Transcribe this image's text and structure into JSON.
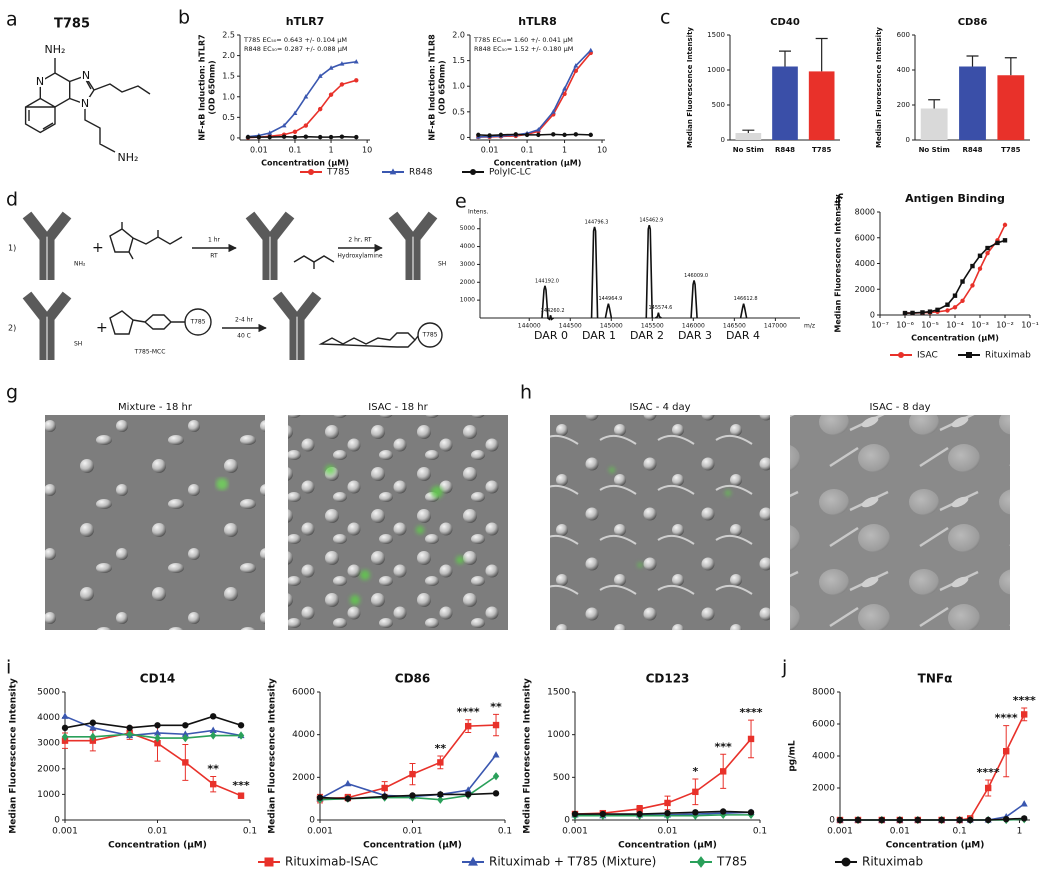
{
  "panel_labels": [
    "a",
    "b",
    "c",
    "d",
    "e",
    "f",
    "g",
    "h",
    "i",
    "j"
  ],
  "structure": {
    "title": "T785",
    "labels": [
      "NH₂",
      "N",
      "N",
      "N",
      "NH₂"
    ]
  },
  "scheme": {
    "steps": [
      "1)",
      "2)"
    ],
    "operators": [
      "+",
      "+"
    ],
    "groups": [
      "NH₂",
      "SH",
      "SH"
    ],
    "conditions": [
      "1 hr",
      "RT",
      "2 hr, RT",
      "Hydroxylamine",
      "2-4 hr",
      "40 C"
    ],
    "reagent": "T785-MCC",
    "payload": [
      "T785",
      "T785"
    ]
  },
  "images": [
    {
      "title": "Mixture - 18 hr"
    },
    {
      "title": "ISAC - 18 hr"
    },
    {
      "title": "ISAC - 4 day"
    },
    {
      "title": "ISAC - 8 day"
    }
  ],
  "chart_data": [
    {
      "type": "line",
      "title": "hTLR7",
      "xscale": "log",
      "legend": "bottom",
      "xlabel": "Concentration (μM)",
      "ylabel": [
        "NF-κB Induction: hTLR7",
        "(OD 650nm)"
      ],
      "annotations": [
        "T785 EC₅₀= 0.643 +/- 0.104 μM",
        "R848 EC₅₀= 0.287 +/- 0.088 μM"
      ],
      "x": [
        0.005,
        0.01,
        0.02,
        0.05,
        0.1,
        0.2,
        0.5,
        1,
        2,
        5
      ],
      "xlim": [
        0.003,
        12
      ],
      "xticks": [
        0.01,
        0.1,
        1,
        10
      ],
      "ylim": [
        -0.05,
        2.5
      ],
      "yticks": [
        0,
        0.5,
        {
          "value": 1,
          "label": "1.0"
        },
        1.5,
        {
          "value": 2,
          "label": "2.0"
        },
        2.5
      ],
      "series": [
        {
          "name": "T785",
          "color": "#e8312a",
          "marker": "circle",
          "values": [
            0.01,
            0.02,
            0.04,
            0.08,
            0.15,
            0.3,
            0.7,
            1.05,
            1.3,
            1.4
          ]
        },
        {
          "name": "R848",
          "color": "#3a57b0",
          "marker": "triangle",
          "values": [
            0.03,
            0.06,
            0.12,
            0.3,
            0.6,
            1.0,
            1.5,
            1.7,
            1.8,
            1.85
          ]
        },
        {
          "name": "PolyIC-LC",
          "color": "#111111",
          "marker": "circle",
          "values": [
            0.02,
            0.02,
            0.02,
            0.03,
            0.02,
            0.03,
            0.02,
            0.02,
            0.03,
            0.02
          ]
        }
      ]
    },
    {
      "type": "line",
      "title": "hTLR8",
      "xscale": "log",
      "xlabel": "Concentration (μM)",
      "ylabel": [
        "NF-κB Induction: hTLR8",
        "(OD 650nm)"
      ],
      "annotations": [
        "T785 EC₅₀= 1.60 +/- 0.041 μM",
        "R848 EC₅₀= 1.52 +/- 0.180 μM"
      ],
      "x": [
        0.005,
        0.01,
        0.02,
        0.05,
        0.1,
        0.2,
        0.5,
        1,
        2,
        5
      ],
      "xlim": [
        0.003,
        12
      ],
      "xticks": [
        0.01,
        0.1,
        1,
        10
      ],
      "ylim": [
        -0.05,
        2.0
      ],
      "yticks": [
        0,
        0.5,
        {
          "value": 1,
          "label": "1.0"
        },
        1.5,
        {
          "value": 2,
          "label": "2.0"
        }
      ],
      "series": [
        {
          "color": "#e8312a",
          "marker": "circle",
          "values": [
            0.01,
            0.01,
            0.02,
            0.03,
            0.06,
            0.12,
            0.45,
            0.85,
            1.3,
            1.65
          ]
        },
        {
          "color": "#3a57b0",
          "marker": "triangle",
          "values": [
            0.01,
            0.02,
            0.03,
            0.05,
            0.08,
            0.15,
            0.5,
            0.95,
            1.4,
            1.7
          ]
        },
        {
          "color": "#111111",
          "marker": "circle",
          "values": [
            0.05,
            0.04,
            0.05,
            0.06,
            0.05,
            0.05,
            0.06,
            0.05,
            0.06,
            0.05
          ]
        }
      ]
    },
    {
      "type": "bar",
      "title": "CD40",
      "ylabel": "Median Fluorescence Intensity",
      "categories": [
        "No Stim",
        "R848",
        "T785"
      ],
      "values": [
        100,
        1050,
        980
      ],
      "errors": [
        40,
        220,
        470
      ],
      "colors": [
        "#d9d9d9",
        "#3a4fa8",
        "#e8312a"
      ],
      "ylim": [
        0,
        1500
      ],
      "yticks": [
        0,
        500,
        1000,
        1500
      ]
    },
    {
      "type": "bar",
      "title": "CD86",
      "ylabel": "Median Fluorescence Intensity",
      "categories": [
        "No Stim",
        "R848",
        "T785"
      ],
      "values": [
        180,
        420,
        370
      ],
      "errors": [
        50,
        60,
        100
      ],
      "colors": [
        "#d9d9d9",
        "#3a4fa8",
        "#e8312a"
      ],
      "ylim": [
        0,
        600
      ],
      "yticks": [
        0,
        200,
        400,
        600
      ]
    },
    {
      "type": "spectrum",
      "ylabel": "Intens.",
      "xlabel": "m/z",
      "color": "#111111",
      "x": [
        144192.0,
        144260.2,
        144796.3,
        144964.9,
        145462.9,
        145574.6,
        146009.0,
        146612.8
      ],
      "x_labels": [
        "144192.0",
        "144260.2",
        "144796.3",
        "144964.9",
        "145462.9",
        "145574.6",
        "146009.0",
        "146612.8"
      ],
      "values": [
        1800,
        150,
        5100,
        800,
        5200,
        300,
        2100,
        800
      ],
      "dar_labels": [
        "DAR 0",
        "DAR 1",
        "DAR 2",
        "DAR 3",
        "DAR 4"
      ],
      "xlim": [
        143400,
        147300
      ],
      "xticks": [
        144000,
        144500,
        145000,
        145500,
        146000,
        146500,
        147000
      ],
      "ylim": [
        0,
        5600
      ],
      "yticks": [
        1000,
        2000,
        3000,
        4000,
        5000
      ]
    },
    {
      "type": "line",
      "title": "Antigen Binding",
      "xscale": "log",
      "legend": "bottom",
      "xlabel": "Concentration (μM)",
      "ylabel": [
        "Median Fluorescence Intensity"
      ],
      "x": [
        1e-06,
        2e-06,
        5e-06,
        1e-05,
        2e-05,
        5e-05,
        0.0001,
        0.0002,
        0.0005,
        0.001,
        0.002,
        0.005,
        0.01
      ],
      "xlim": [
        1e-07,
        0.1
      ],
      "xticks": [
        {
          "value": 1e-07,
          "label": "10⁻⁷"
        },
        {
          "value": 1e-06,
          "label": "10⁻⁶"
        },
        {
          "value": 1e-05,
          "label": "10⁻⁵"
        },
        {
          "value": 0.0001,
          "label": "10⁻⁴"
        },
        {
          "value": 0.001,
          "label": "10⁻³"
        },
        {
          "value": 0.01,
          "label": "10⁻²"
        },
        {
          "value": 0.1,
          "label": "10⁻¹"
        }
      ],
      "ylim": [
        0,
        8000
      ],
      "yticks": [
        0,
        2000,
        4000,
        6000,
        8000
      ],
      "series": [
        {
          "name": "ISAC",
          "color": "#e8312a",
          "marker": "circle",
          "values": [
            150,
            150,
            180,
            200,
            250,
            350,
            600,
            1100,
            2300,
            3600,
            4800,
            5800,
            7000
          ]
        },
        {
          "name": "Rituximab",
          "color": "#111111",
          "marker": "square",
          "values": [
            150,
            160,
            200,
            260,
            400,
            800,
            1500,
            2600,
            3800,
            4600,
            5200,
            5600,
            5800
          ]
        }
      ]
    },
    {
      "type": "line",
      "title": "CD14",
      "xscale": "log",
      "legend": "bottom",
      "xlabel": "Concentration (μM)",
      "ylabel": [
        "Median Fluorescence Intensity"
      ],
      "x": [
        0.001,
        0.002,
        0.005,
        0.01,
        0.02,
        0.04,
        0.08
      ],
      "xlim": [
        0.001,
        0.1
      ],
      "xticks": [
        0.001,
        0.01,
        0.1
      ],
      "ylim": [
        0,
        5000
      ],
      "yticks": [
        0,
        1000,
        2000,
        3000,
        4000,
        5000
      ],
      "series": [
        {
          "name": "Rituximab-ISAC",
          "color": "#e8312a",
          "marker": "square",
          "values": [
            3100,
            3100,
            3400,
            3000,
            2250,
            1400,
            950
          ],
          "errors": [
            300,
            400,
            250,
            700,
            700,
            300,
            100
          ],
          "stars": [
            null,
            null,
            null,
            null,
            null,
            "**",
            "***"
          ]
        },
        {
          "name": "Rituximab + T785 (Mixture)",
          "color": "#3a57b0",
          "marker": "triangle",
          "values": [
            4050,
            3600,
            3300,
            3400,
            3350,
            3500,
            3300
          ]
        },
        {
          "name": "T785",
          "color": "#2aa05a",
          "marker": "diamond",
          "values": [
            3250,
            3250,
            3350,
            3200,
            3200,
            3300,
            3300
          ]
        },
        {
          "name": "Rituximab",
          "color": "#111111",
          "marker": "circle",
          "values": [
            3600,
            3800,
            3600,
            3700,
            3700,
            4050,
            3700
          ]
        }
      ]
    },
    {
      "type": "line",
      "title": "CD86",
      "xscale": "log",
      "xlabel": "Concentration (μM)",
      "ylabel": [
        "Median Fluorescence Intensity"
      ],
      "x": [
        0.001,
        0.002,
        0.005,
        0.01,
        0.02,
        0.04,
        0.08
      ],
      "xlim": [
        0.001,
        0.1
      ],
      "xticks": [
        0.001,
        0.01,
        0.1
      ],
      "ylim": [
        0,
        6000
      ],
      "yticks": [
        0,
        2000,
        4000,
        6000
      ],
      "series": [
        {
          "color": "#e8312a",
          "marker": "square",
          "values": [
            1000,
            1050,
            1500,
            2150,
            2700,
            4400,
            4450
          ],
          "errors": [
            200,
            150,
            300,
            500,
            300,
            300,
            500
          ],
          "stars": [
            null,
            null,
            null,
            null,
            "**",
            "****",
            "**"
          ]
        },
        {
          "color": "#3a57b0",
          "marker": "triangle",
          "values": [
            1000,
            1700,
            1150,
            1100,
            1200,
            1400,
            3050
          ]
        },
        {
          "color": "#2aa05a",
          "marker": "diamond",
          "values": [
            950,
            1000,
            1050,
            1050,
            950,
            1150,
            2050
          ]
        },
        {
          "color": "#111111",
          "marker": "circle",
          "values": [
            1050,
            1000,
            1100,
            1150,
            1200,
            1200,
            1250
          ]
        }
      ]
    },
    {
      "type": "line",
      "title": "CD123",
      "xscale": "log",
      "xlabel": "Concentration (μM)",
      "ylabel": [
        "Median Fluorescence Intensity"
      ],
      "x": [
        0.001,
        0.002,
        0.005,
        0.01,
        0.02,
        0.04,
        0.08
      ],
      "xlim": [
        0.001,
        0.1
      ],
      "xticks": [
        0.001,
        0.01,
        0.1
      ],
      "ylim": [
        0,
        1500
      ],
      "yticks": [
        0,
        500,
        1000,
        1500
      ],
      "series": [
        {
          "color": "#e8312a",
          "marker": "square",
          "values": [
            70,
            80,
            130,
            200,
            330,
            570,
            950
          ],
          "errors": [
            20,
            20,
            40,
            80,
            150,
            200,
            220
          ],
          "stars": [
            null,
            null,
            null,
            null,
            "*",
            "***",
            "****"
          ]
        },
        {
          "color": "#3a57b0",
          "marker": "triangle",
          "values": [
            60,
            50,
            60,
            60,
            70,
            80,
            90
          ]
        },
        {
          "color": "#2aa05a",
          "marker": "diamond",
          "values": [
            50,
            50,
            50,
            50,
            50,
            60,
            60
          ]
        },
        {
          "color": "#111111",
          "marker": "circle",
          "values": [
            70,
            70,
            70,
            80,
            90,
            100,
            90
          ]
        }
      ]
    },
    {
      "type": "line",
      "title": "TNFα",
      "xscale": "log",
      "xlabel": "Concentration (μM)",
      "ylabel": [
        "pg/mL"
      ],
      "x": [
        0.001,
        0.002,
        0.005,
        0.01,
        0.02,
        0.05,
        0.1,
        0.15,
        0.3,
        0.6,
        1.2
      ],
      "xlim": [
        0.001,
        1.5
      ],
      "xticks": [
        0.001,
        0.01,
        0.1,
        1
      ],
      "ylim": [
        0,
        8000
      ],
      "yticks": [
        0,
        2000,
        4000,
        6000,
        8000
      ],
      "series": [
        {
          "color": "#e8312a",
          "marker": "square",
          "values": [
            0,
            0,
            0,
            0,
            0,
            0,
            0,
            100,
            2000,
            4300,
            6600
          ],
          "errors": [
            0,
            0,
            0,
            0,
            0,
            0,
            0,
            50,
            500,
            1600,
            400
          ],
          "stars": [
            null,
            null,
            null,
            null,
            null,
            null,
            null,
            null,
            "****",
            "****",
            "****"
          ]
        },
        {
          "color": "#3a57b0",
          "marker": "triangle",
          "values": [
            0,
            0,
            0,
            0,
            0,
            0,
            0,
            0,
            0,
            200,
            1000
          ]
        },
        {
          "color": "#2aa05a",
          "marker": "diamond",
          "values": [
            0,
            0,
            0,
            0,
            0,
            0,
            0,
            0,
            0,
            0,
            50
          ]
        },
        {
          "color": "#111111",
          "marker": "circle",
          "values": [
            0,
            0,
            0,
            0,
            0,
            0,
            0,
            0,
            0,
            50,
            100
          ]
        }
      ]
    }
  ]
}
